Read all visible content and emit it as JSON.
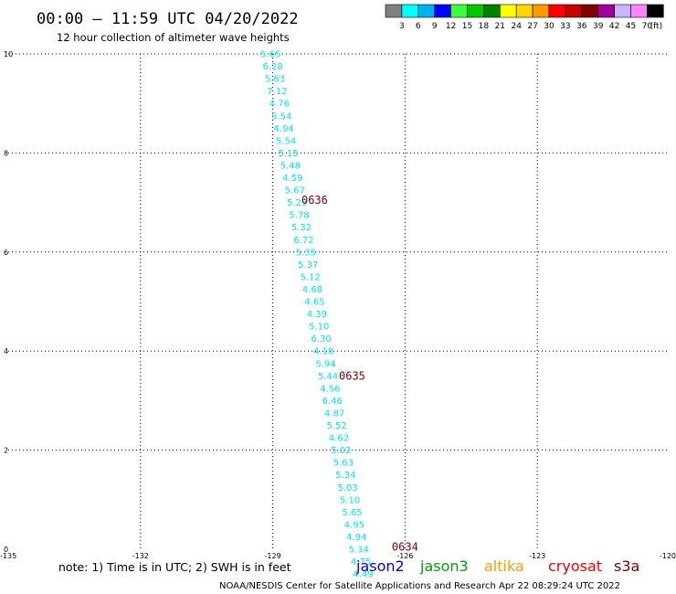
{
  "chart_data": {
    "type": "scatter",
    "title": "00:00 — 11:59 UTC 04/20/2022",
    "subtitle": "12 hour collection of altimeter wave heights",
    "xlim": [
      -135,
      -120
    ],
    "ylim": [
      0,
      10
    ],
    "x_ticks": [
      "-135",
      "-132",
      "-129",
      "-126",
      "-123",
      "-120"
    ],
    "x_tick_values": [
      -135,
      -132,
      -129,
      -126,
      -123,
      -120
    ],
    "y_ticks": [
      "0",
      "2",
      "4",
      "6",
      "8",
      "10"
    ],
    "y_tick_values": [
      0,
      2,
      4,
      6,
      8,
      10
    ],
    "grid": "dotted",
    "colorbar": {
      "colors": [
        "#808080",
        "#00ffff",
        "#00b2ee",
        "#0000ff",
        "#3cff3c",
        "#00c800",
        "#008000",
        "#ffff00",
        "#ffd700",
        "#ff9a00",
        "#ff0000",
        "#c80000",
        "#800000",
        "#a000a0",
        "#c8b4ff",
        "#ff82ff",
        "#000000"
      ],
      "labels": [
        "3",
        "6",
        "9",
        "12",
        "15",
        "18",
        "21",
        "24",
        "27",
        "30",
        "33",
        "36",
        "39",
        "42",
        "45",
        "70"
      ],
      "unit": "(ft)"
    },
    "value_color": "#00e5ee",
    "cycle_color": "#800000",
    "points": [
      {
        "x": -129.05,
        "y": 10.0,
        "label": "5.65"
      },
      {
        "x": -129.0,
        "y": 9.75,
        "label": "6.28"
      },
      {
        "x": -128.95,
        "y": 9.5,
        "label": "5.63"
      },
      {
        "x": -128.9,
        "y": 9.25,
        "label": "7.12"
      },
      {
        "x": -128.85,
        "y": 9.0,
        "label": "4.76"
      },
      {
        "x": -128.8,
        "y": 8.75,
        "label": "5.54"
      },
      {
        "x": -128.75,
        "y": 8.5,
        "label": "4.94"
      },
      {
        "x": -128.7,
        "y": 8.25,
        "label": "5.54"
      },
      {
        "x": -128.65,
        "y": 8.0,
        "label": "5.15"
      },
      {
        "x": -128.6,
        "y": 7.75,
        "label": "5.48"
      },
      {
        "x": -128.55,
        "y": 7.5,
        "label": "4.59"
      },
      {
        "x": -128.5,
        "y": 7.25,
        "label": "5.67"
      },
      {
        "x": -128.45,
        "y": 7.0,
        "label": "5.23"
      },
      {
        "x": -128.4,
        "y": 6.75,
        "label": "5.78"
      },
      {
        "x": -128.35,
        "y": 6.5,
        "label": "5.32"
      },
      {
        "x": -128.3,
        "y": 6.25,
        "label": "6.72"
      },
      {
        "x": -128.25,
        "y": 6.0,
        "label": "5.35"
      },
      {
        "x": -128.2,
        "y": 5.75,
        "label": "5.37"
      },
      {
        "x": -128.15,
        "y": 5.5,
        "label": "5.12"
      },
      {
        "x": -128.1,
        "y": 5.25,
        "label": "4.68"
      },
      {
        "x": -128.05,
        "y": 5.0,
        "label": "4.65"
      },
      {
        "x": -128.0,
        "y": 4.75,
        "label": "4.39"
      },
      {
        "x": -127.95,
        "y": 4.5,
        "label": "5.10"
      },
      {
        "x": -127.9,
        "y": 4.25,
        "label": "6.30"
      },
      {
        "x": -127.85,
        "y": 4.0,
        "label": "4.18"
      },
      {
        "x": -127.8,
        "y": 3.75,
        "label": "5.94"
      },
      {
        "x": -127.75,
        "y": 3.5,
        "label": "5.44"
      },
      {
        "x": -127.7,
        "y": 3.25,
        "label": "4.56"
      },
      {
        "x": -127.65,
        "y": 3.0,
        "label": "6.46"
      },
      {
        "x": -127.6,
        "y": 2.75,
        "label": "4.87"
      },
      {
        "x": -127.55,
        "y": 2.5,
        "label": "5.52"
      },
      {
        "x": -127.5,
        "y": 2.25,
        "label": "4.62"
      },
      {
        "x": -127.45,
        "y": 2.0,
        "label": "5.02"
      },
      {
        "x": -127.4,
        "y": 1.75,
        "label": "5.63"
      },
      {
        "x": -127.35,
        "y": 1.5,
        "label": "5.34"
      },
      {
        "x": -127.3,
        "y": 1.25,
        "label": "5.03"
      },
      {
        "x": -127.25,
        "y": 1.0,
        "label": "5.10"
      },
      {
        "x": -127.2,
        "y": 0.75,
        "label": "5.65"
      },
      {
        "x": -127.15,
        "y": 0.5,
        "label": "4.95"
      },
      {
        "x": -127.1,
        "y": 0.25,
        "label": "4.94"
      },
      {
        "x": -127.05,
        "y": 0.0,
        "label": "5.34"
      },
      {
        "x": -127.0,
        "y": -0.25,
        "label": "4.75"
      },
      {
        "x": -126.95,
        "y": -0.5,
        "label": "4.49"
      }
    ],
    "cycles": [
      {
        "x": -128.35,
        "y": 7.05,
        "label": "0636"
      },
      {
        "x": -127.5,
        "y": 3.5,
        "label": "0635"
      },
      {
        "x": -126.3,
        "y": 0.05,
        "label": "0634"
      }
    ]
  },
  "note": "note:  1) Time is in UTC;  2) SWH is in feet",
  "satellites": [
    {
      "name": "jason2",
      "color": "#0000dd"
    },
    {
      "name": "jason3",
      "color": "#00a000"
    },
    {
      "name": "altika",
      "color": "#ff9a00"
    },
    {
      "name": "cryosat",
      "color": "#ee0000"
    },
    {
      "name": "s3a",
      "color": "#800000"
    }
  ],
  "footer": "NOAA/NESDIS Center for Satellite Applications and Research    Apr 22 08:29:24 UTC 2022"
}
